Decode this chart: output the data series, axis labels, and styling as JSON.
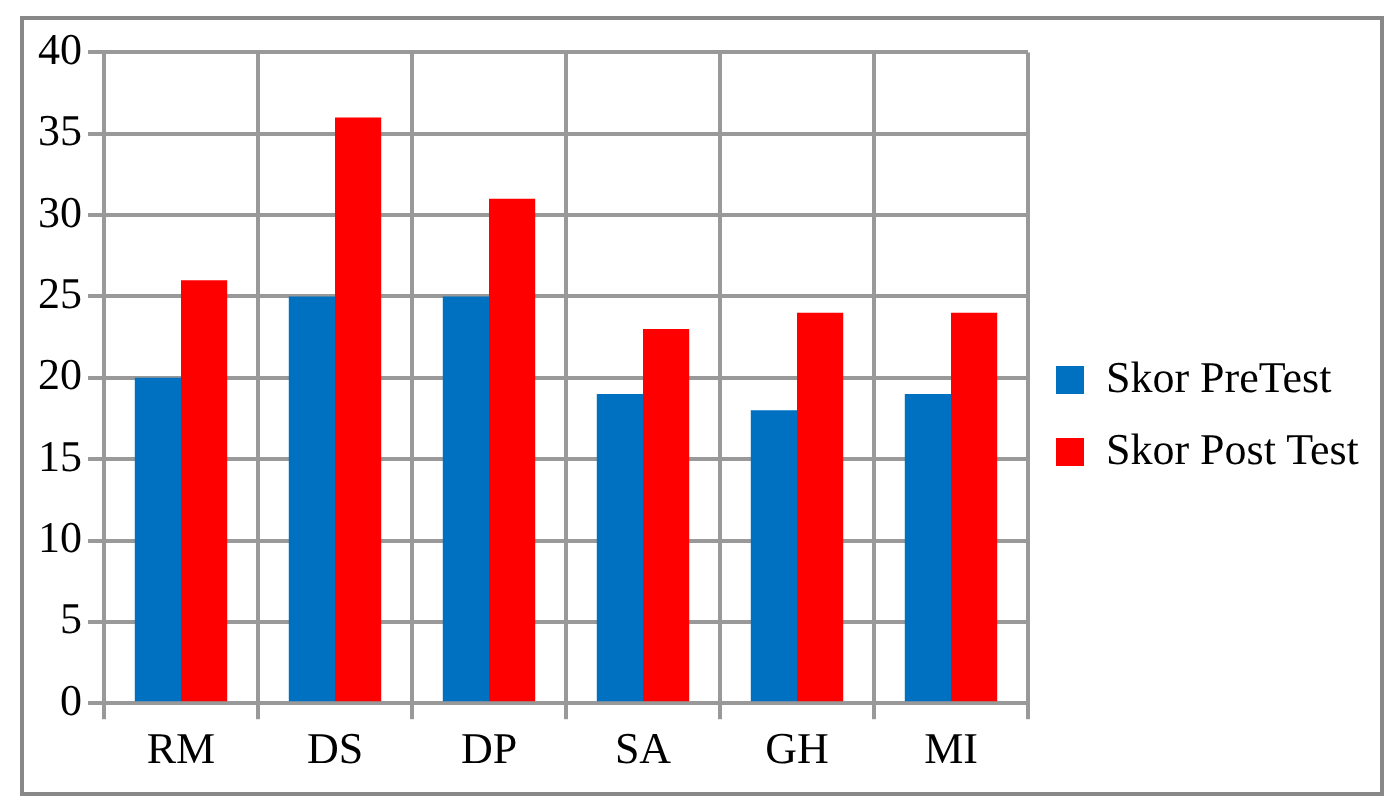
{
  "chart_data": {
    "type": "bar",
    "categories": [
      "RM",
      "DS",
      "DP",
      "SA",
      "GH",
      "MI"
    ],
    "series": [
      {
        "name": "Skor PreTest",
        "color": "#0070c0",
        "values": [
          20,
          25,
          25,
          19,
          18,
          19
        ]
      },
      {
        "name": "Skor Post Test",
        "color": "#ff0000",
        "values": [
          26,
          36,
          31,
          23,
          24,
          24
        ]
      }
    ],
    "ylim": [
      0,
      40
    ],
    "yticks": [
      0,
      5,
      10,
      15,
      20,
      25,
      30,
      35,
      40
    ],
    "grid": true,
    "legend": "right"
  }
}
